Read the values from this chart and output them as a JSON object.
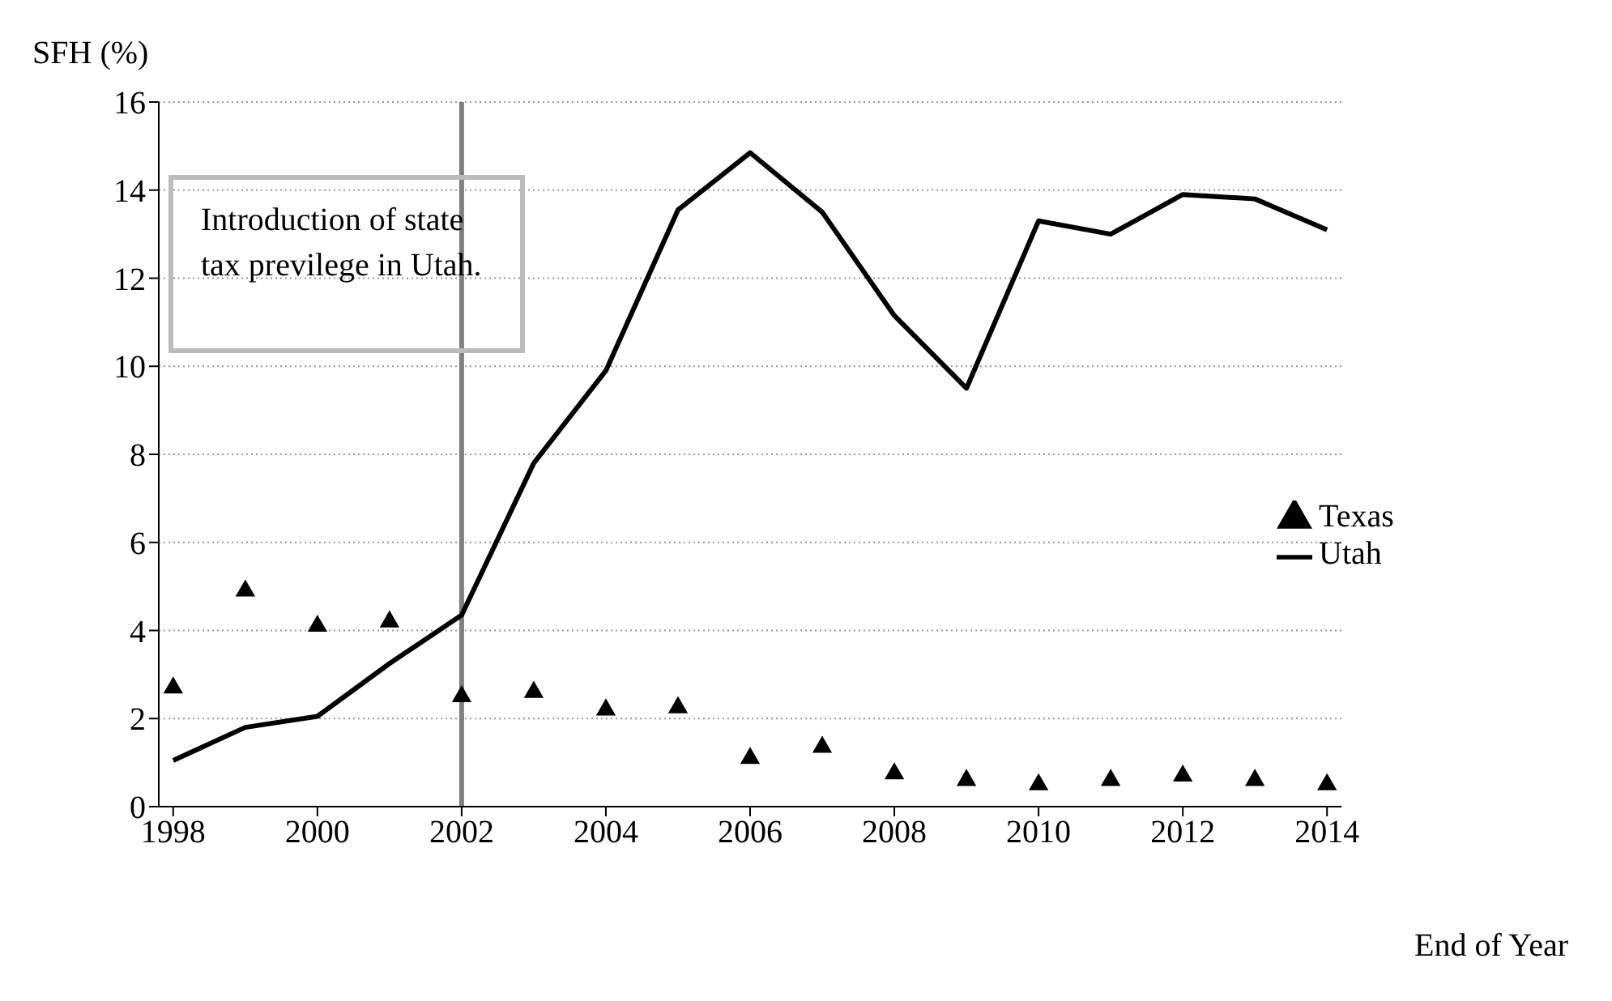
{
  "chart_data": {
    "type": "line",
    "xlabel": "End of Year",
    "ylabel": "SFH (%)",
    "x": [
      1998,
      1999,
      2000,
      2001,
      2002,
      2003,
      2004,
      2005,
      2006,
      2007,
      2008,
      2009,
      2010,
      2011,
      2012,
      2013,
      2014
    ],
    "series": [
      {
        "name": "Texas",
        "type": "scatter",
        "marker": "triangle",
        "color": "#000000",
        "values": [
          2.7,
          4.9,
          4.1,
          4.2,
          2.5,
          2.6,
          2.2,
          2.25,
          1.1,
          1.35,
          0.75,
          0.6,
          0.5,
          0.6,
          0.7,
          0.6,
          0.5
        ]
      },
      {
        "name": "Utah",
        "line_style": "solid",
        "color": "#000000",
        "values": [
          1.05,
          1.8,
          2.05,
          3.25,
          4.35,
          7.8,
          9.9,
          13.55,
          14.85,
          13.5,
          11.15,
          9.5,
          13.3,
          13.0,
          13.9,
          13.8,
          13.1
        ]
      }
    ],
    "xlim": [
      1997.8,
      2014.2
    ],
    "xticks": [
      1998,
      2000,
      2002,
      2004,
      2006,
      2008,
      2010,
      2012,
      2014
    ],
    "ylim": [
      0,
      16
    ],
    "yticks": [
      0,
      2,
      4,
      6,
      8,
      10,
      12,
      14,
      16
    ],
    "grid": "y",
    "legend": "right",
    "ref_lines": [
      {
        "axis": "x",
        "value": 2002,
        "color": "#808080",
        "line_style": "solid",
        "label": null
      }
    ],
    "annotations": [
      "Introduction of state tax previlege in Utah."
    ]
  }
}
